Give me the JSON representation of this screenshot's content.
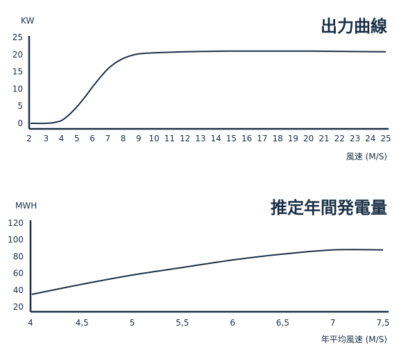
{
  "chart_data": [
    {
      "type": "line",
      "title": "出力曲線",
      "ylabel": "KW",
      "xlabel": "風速 (M/S)",
      "xlim": [
        2,
        25
      ],
      "ylim": [
        0,
        25
      ],
      "x_ticks": [
        "2",
        "3",
        "4",
        "5",
        "6",
        "7",
        "8",
        "9",
        "10",
        "11",
        "12",
        "13",
        "14",
        "15",
        "16",
        "17",
        "18",
        "19",
        "20",
        "21",
        "22",
        "23",
        "24",
        "25"
      ],
      "y_ticks": [
        "0",
        "5",
        "10",
        "15",
        "20",
        "25"
      ],
      "series": [
        {
          "x": [
            2,
            3,
            3.5,
            4,
            4.5,
            5,
            5.5,
            6,
            6.5,
            7,
            7.5,
            8,
            8.5,
            9,
            10,
            12,
            15,
            20,
            25
          ],
          "values": [
            0,
            0,
            0.2,
            0.8,
            2.5,
            4.8,
            7.5,
            10.5,
            13.3,
            15.8,
            17.6,
            18.9,
            19.7,
            20.2,
            20.5,
            20.8,
            21,
            21,
            20.8
          ]
        }
      ]
    },
    {
      "type": "line",
      "title": "推定年間発電量",
      "ylabel": "MWH",
      "xlabel": "年平均風速 (M/S)",
      "xlim": [
        4,
        7.5
      ],
      "ylim": [
        20,
        120
      ],
      "x_ticks": [
        "4",
        "4,5",
        "5",
        "5,5",
        "6",
        "6,5",
        "7",
        "7,5"
      ],
      "y_ticks": [
        "20",
        "40",
        "60",
        "80",
        "100",
        "120"
      ],
      "series": [
        {
          "x": [
            4,
            4.5,
            5,
            5.5,
            6,
            6.5,
            7,
            7.5
          ],
          "values": [
            35,
            47,
            58,
            67,
            76,
            83,
            88,
            88
          ]
        }
      ]
    }
  ]
}
